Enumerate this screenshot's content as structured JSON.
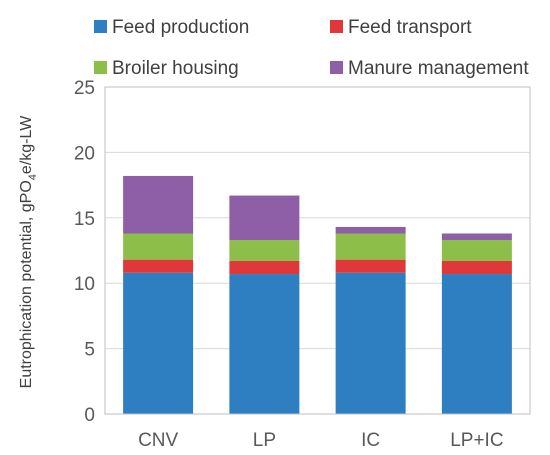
{
  "chart_data": {
    "type": "bar",
    "stacked": true,
    "categories": [
      "CNV",
      "LP",
      "IC",
      "LP+IC"
    ],
    "series": [
      {
        "name": "Feed production",
        "color": "#2E7FC1",
        "values": [
          10.8,
          10.7,
          10.8,
          10.7
        ]
      },
      {
        "name": "Feed transport",
        "color": "#E0383A",
        "values": [
          1.0,
          1.0,
          1.0,
          1.0
        ]
      },
      {
        "name": "Broiler housing",
        "color": "#8DBE49",
        "values": [
          2.0,
          1.6,
          2.0,
          1.6
        ]
      },
      {
        "name": "Manure management",
        "color": "#8E5EA6",
        "values": [
          4.4,
          3.4,
          0.5,
          0.5
        ]
      }
    ],
    "ylabel_parts": [
      "Eutrophication potential, gPO",
      "4",
      "e/kg-LW"
    ],
    "ylim": [
      0,
      25
    ],
    "yticks": [
      0,
      5,
      10,
      15,
      20,
      25
    ],
    "legend_position": "top",
    "grid": true
  }
}
